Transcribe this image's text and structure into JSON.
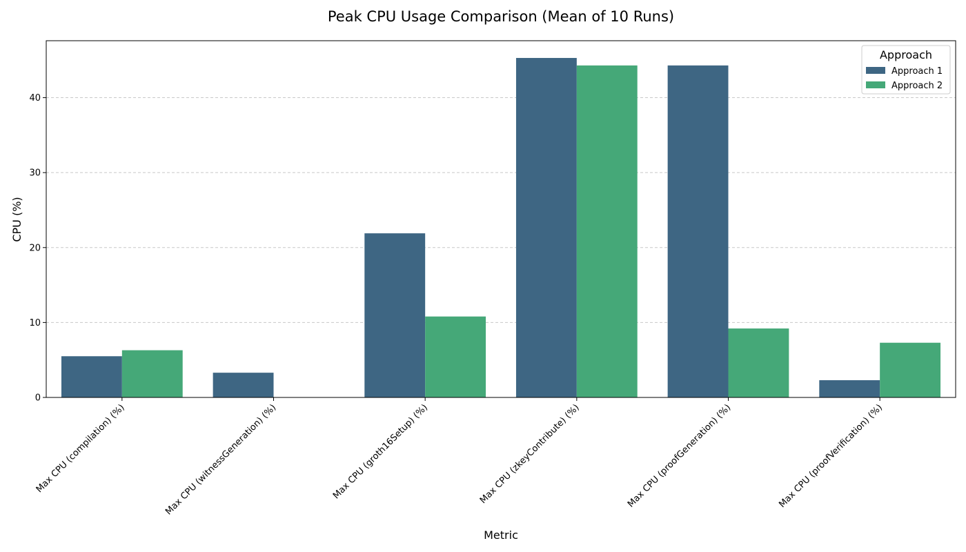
{
  "chart_data": {
    "type": "bar",
    "title": "Peak CPU Usage Comparison (Mean of 10 Runs)",
    "xlabel": "Metric",
    "ylabel": "CPU (%)",
    "categories": [
      "Max CPU (compilation) (%)",
      "Max CPU (witnessGeneration) (%)",
      "Max CPU (groth16Setup) (%)",
      "Max CPU (zkeyContribute) (%)",
      "Max CPU (proofGeneration) (%)",
      "Max CPU (proofVerification) (%)"
    ],
    "series": [
      {
        "name": "Approach 1",
        "color": "#3e6683",
        "values": [
          5.5,
          3.3,
          21.9,
          45.3,
          44.3,
          2.3
        ]
      },
      {
        "name": "Approach 2",
        "color": "#45a878",
        "values": [
          6.3,
          0,
          10.8,
          44.3,
          9.2,
          7.3
        ]
      }
    ],
    "ylim": [
      0,
      47.6
    ],
    "yticks": [
      0,
      10,
      20,
      30,
      40
    ],
    "ytick_labels": [
      "0",
      "10",
      "20",
      "30",
      "40"
    ],
    "grid": "y-dashed",
    "legend": {
      "title": "Approach",
      "placement": "top-right"
    }
  }
}
